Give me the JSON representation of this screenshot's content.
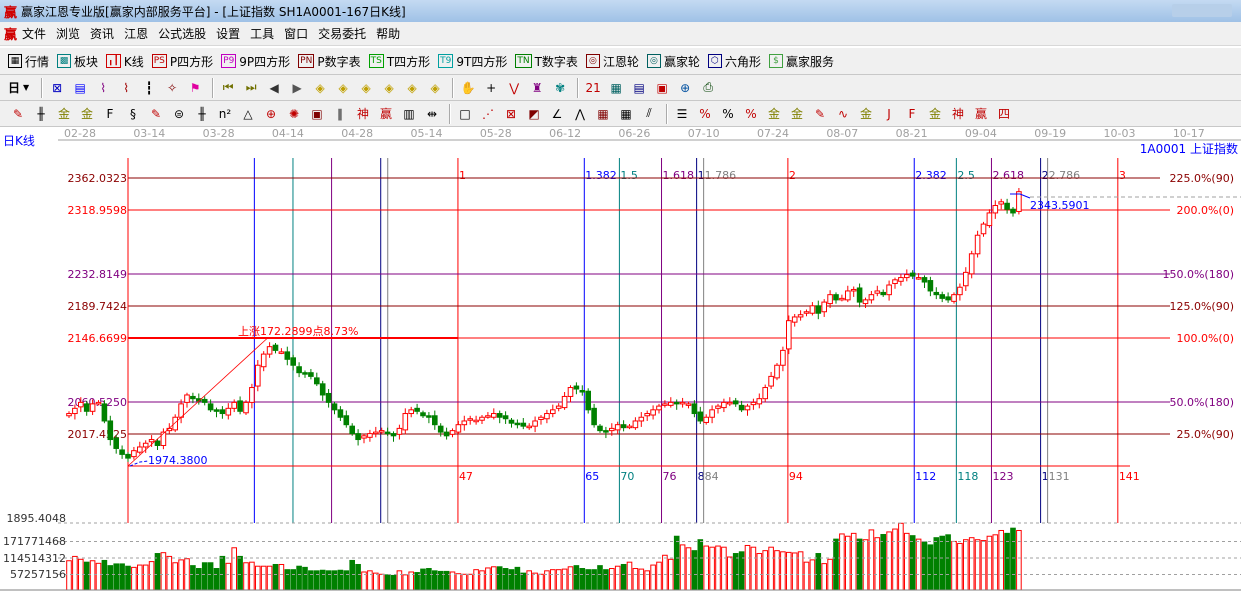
{
  "window": {
    "title": "赢家江恩专业版[赢家内部服务平台] - [上证指数  SH1A0001-167日K线]",
    "logo": "赢"
  },
  "menu": [
    "文件",
    "浏览",
    "资讯",
    "江恩",
    "公式选股",
    "设置",
    "工具",
    "窗口",
    "交易委托",
    "帮助"
  ],
  "toolbar1": [
    {
      "icon": "quote-table-icon",
      "glyph": "▦",
      "label": "行情",
      "color": "#000"
    },
    {
      "icon": "sector-blocks-icon",
      "glyph": "▩",
      "label": "板块",
      "color": "#008080"
    },
    {
      "icon": "kline-icon",
      "glyph": "╻┃",
      "label": "K线",
      "color": "#d00000"
    },
    {
      "icon": "ps-icon",
      "glyph": "PS",
      "label": "P四方形",
      "color": "#c00000"
    },
    {
      "icon": "p9-icon",
      "glyph": "P9",
      "label": "9P四方形",
      "color": "#c000c0"
    },
    {
      "icon": "pn-icon",
      "glyph": "PN",
      "label": "P数字表",
      "color": "#800000"
    },
    {
      "icon": "ts-icon",
      "glyph": "TS",
      "label": "T四方形",
      "color": "#00a000"
    },
    {
      "icon": "t9-icon",
      "glyph": "T9",
      "label": "9T四方形",
      "color": "#00a0a0"
    },
    {
      "icon": "tn-icon",
      "glyph": "TN",
      "label": "T数字表",
      "color": "#008000"
    },
    {
      "icon": "gann-wheel-icon",
      "glyph": "◎",
      "label": "江恩轮",
      "color": "#800000"
    },
    {
      "icon": "big-wheel-icon",
      "glyph": "◎",
      "label": "赢家轮",
      "color": "#006060"
    },
    {
      "icon": "hexagon-icon",
      "glyph": "⬡",
      "label": "六角形",
      "color": "#000080"
    },
    {
      "icon": "dollar-icon",
      "glyph": "$",
      "label": "赢家服务",
      "color": "#40a040"
    }
  ],
  "toolbar2": {
    "period": "日",
    "icons": [
      {
        "n": "zoom-chart-icon",
        "g": "⊠",
        "c": "#0000c0"
      },
      {
        "n": "notes-icon",
        "g": "▤",
        "c": "#0000ff"
      },
      {
        "n": "indicator3-icon",
        "g": "⌇",
        "c": "#800080"
      },
      {
        "n": "indicator9-icon",
        "g": "⌇",
        "c": "#a00000"
      },
      {
        "n": "candle-type-icon",
        "g": "┇",
        "c": "#000"
      },
      {
        "n": "map-icon",
        "g": "✧",
        "c": "#800000"
      },
      {
        "n": "flag-icon",
        "g": "⚑",
        "c": "#e000a0"
      },
      {
        "n": "first-icon",
        "g": "⏮",
        "c": "#707000"
      },
      {
        "n": "last-icon",
        "g": "⏭",
        "c": "#707000"
      },
      {
        "n": "prev-icon",
        "g": "◀",
        "c": "#333"
      },
      {
        "n": "next-icon",
        "g": "▶",
        "c": "#555"
      },
      {
        "n": "move-left-icon",
        "g": "◈",
        "c": "#c0a000"
      },
      {
        "n": "move-right-icon",
        "g": "◈",
        "c": "#c0a000"
      },
      {
        "n": "expand-icon",
        "g": "◈",
        "c": "#c0a000"
      },
      {
        "n": "shrink-icon",
        "g": "◈",
        "c": "#c0a000"
      },
      {
        "n": "zoom-in-icon",
        "g": "◈",
        "c": "#c0a000"
      },
      {
        "n": "zoom-out-icon",
        "g": "◈",
        "c": "#c0a000"
      },
      {
        "n": "hand-icon",
        "g": "✋",
        "c": "#000"
      },
      {
        "n": "crosshair-icon",
        "g": "+",
        "c": "#000"
      },
      {
        "n": "line-icon",
        "g": "⋁",
        "c": "#c00000"
      },
      {
        "n": "shirt-icon",
        "g": "♜",
        "c": "#800080"
      },
      {
        "n": "pattern-icon",
        "g": "✾",
        "c": "#008080"
      },
      {
        "n": "calendar-icon",
        "g": "21",
        "c": "#c00000"
      },
      {
        "n": "calculator-icon",
        "g": "▦",
        "c": "#006060"
      },
      {
        "n": "report-icon",
        "g": "▤",
        "c": "#000080"
      },
      {
        "n": "save-icon",
        "g": "▣",
        "c": "#c00000"
      },
      {
        "n": "network-icon",
        "g": "⊕",
        "c": "#0050a0"
      },
      {
        "n": "print-icon",
        "g": "⎙",
        "c": "#004000"
      }
    ]
  },
  "toolbar3": [
    {
      "n": "pen-icon",
      "g": "✎",
      "c": "#c00000"
    },
    {
      "n": "parallel-icon",
      "g": "╫",
      "c": "#000"
    },
    {
      "n": "gold-line-icon",
      "g": "金",
      "c": "#808000"
    },
    {
      "n": "gold-line2-icon",
      "g": "金",
      "c": "#808000"
    },
    {
      "n": "fib-icon",
      "g": "F",
      "c": "#000"
    },
    {
      "n": "spiral-icon",
      "g": "§",
      "c": "#000"
    },
    {
      "n": "ruler-pen-icon",
      "g": "✎",
      "c": "#c00000"
    },
    {
      "n": "circle-grid-icon",
      "g": "⊜",
      "c": "#000"
    },
    {
      "n": "hash-icon",
      "g": "╫",
      "c": "#000"
    },
    {
      "n": "n2-icon",
      "g": "n²",
      "c": "#000"
    },
    {
      "n": "triangle-icon",
      "g": "△",
      "c": "#000"
    },
    {
      "n": "target-icon",
      "g": "⊕",
      "c": "#c00000"
    },
    {
      "n": "radial-icon",
      "g": "✺",
      "c": "#c00000"
    },
    {
      "n": "square-target-icon",
      "g": "▣",
      "c": "#800000"
    },
    {
      "n": "slash-icon",
      "g": "∥",
      "c": "#000"
    },
    {
      "n": "god-icon",
      "g": "神",
      "c": "#c00000"
    },
    {
      "n": "win-icon",
      "g": "赢",
      "c": "#c00000"
    },
    {
      "n": "scale-icon",
      "g": "▥",
      "c": "#000"
    },
    {
      "n": "width-icon",
      "g": "⇹",
      "c": "#000"
    },
    {
      "n": "box-icon",
      "g": "□",
      "c": "#000"
    },
    {
      "n": "fan-icon",
      "g": "⋰",
      "c": "#c00000"
    },
    {
      "n": "square-diag-icon",
      "g": "⊠",
      "c": "#c00000"
    },
    {
      "n": "square-fan-icon",
      "g": "◩",
      "c": "#800000"
    },
    {
      "n": "angle-icon",
      "g": "∠",
      "c": "#000"
    },
    {
      "n": "zigzag-icon",
      "g": "⋀",
      "c": "#000"
    },
    {
      "n": "grid-icon",
      "g": "▦",
      "c": "#800000"
    },
    {
      "n": "grid2-icon",
      "g": "▦",
      "c": "#000"
    },
    {
      "n": "triple-slash-icon",
      "g": "⫽",
      "c": "#000"
    },
    {
      "n": "levels-icon",
      "g": "☰",
      "c": "#000"
    },
    {
      "n": "pct-line-icon",
      "g": "%",
      "c": "#c00000"
    },
    {
      "n": "percent-icon",
      "g": "%",
      "c": "#000"
    },
    {
      "n": "pct-levels-icon",
      "g": "%",
      "c": "#c00000"
    },
    {
      "n": "gold-circle-icon",
      "g": "金",
      "c": "#808000"
    },
    {
      "n": "gold-levels-icon",
      "g": "金",
      "c": "#808000"
    },
    {
      "n": "marker-icon",
      "g": "✎",
      "c": "#c00000"
    },
    {
      "n": "wave-icon",
      "g": "∿",
      "c": "#c00000"
    },
    {
      "n": "gold-bar-icon",
      "g": "金",
      "c": "#808000"
    },
    {
      "n": "j-angle-icon",
      "g": "J",
      "c": "#c00000"
    },
    {
      "n": "f-angle-icon",
      "g": "F",
      "c": "#c00000"
    },
    {
      "n": "gold-angle-icon",
      "g": "金",
      "c": "#808000"
    },
    {
      "n": "god-angle-icon",
      "g": "神",
      "c": "#c00000"
    },
    {
      "n": "win-angle-icon",
      "g": "赢",
      "c": "#c00000"
    },
    {
      "n": "four-angle-icon",
      "g": "四",
      "c": "#c00000"
    }
  ],
  "chart": {
    "period_label": "日K线",
    "symbol_label": "1A0001  上证指数",
    "dates": [
      "02-28",
      "03-14",
      "03-28",
      "04-14",
      "04-28",
      "05-14",
      "05-28",
      "06-12",
      "06-26",
      "07-10",
      "07-24",
      "08-07",
      "08-21",
      "09-04",
      "09-19",
      "10-03",
      "10-17"
    ],
    "levels": [
      {
        "price": 2362.0323,
        "price_label": "2362.0323",
        "pct": "225.0%(90)",
        "color": "#8b0000"
      },
      {
        "price": 2318.9598,
        "price_label": "2318.9598",
        "pct": "200.0%(0)",
        "color": "#ff0000"
      },
      {
        "price": 2232.8149,
        "price_label": "2232.8149",
        "pct": "150.0%(180)",
        "color": "#800080"
      },
      {
        "price": 2189.7424,
        "price_label": "2189.7424",
        "pct": "125.0%(90)",
        "color": "#8b0000"
      },
      {
        "price": 2146.6699,
        "price_label": "2146.6699",
        "pct": "100.0%(0)",
        "color": "#ff0000"
      },
      {
        "price": 2060.525,
        "price_label": "2060.5250",
        "pct": "50.0%(180)",
        "color": "#800080"
      },
      {
        "price": 2017.4525,
        "price_label": "2017.4525",
        "pct": "25.0%(90)",
        "color": "#8b0000"
      }
    ],
    "low": {
      "price": 1974.38,
      "label": "1974.3800",
      "bar": 10
    },
    "high": {
      "price": 2146.6699,
      "bar": 34
    },
    "rise_label": "上涨172.2899点8.73%",
    "last_price_label": "2343.5901",
    "time_lines": [
      {
        "count": 0,
        "color": "#ff0000"
      },
      {
        "count": 18,
        "color": "#0000ff"
      },
      {
        "count": 23.5,
        "color": "#008080"
      },
      {
        "count": 29,
        "color": "#800080"
      },
      {
        "count": 36,
        "color": "#000080"
      },
      {
        "count": 37,
        "color": "#808080"
      },
      {
        "count": 47,
        "ratio": "1",
        "color": "#ff0000"
      },
      {
        "count": 65,
        "ratio": "1.382",
        "color": "#0000ff"
      },
      {
        "count": 70,
        "ratio": "1.5",
        "color": "#008080"
      },
      {
        "count": 76,
        "ratio": "1.618",
        "color": "#800080"
      },
      {
        "count": 81,
        "ratio": "1",
        "count_label": "8",
        "color": "#000080"
      },
      {
        "count": 82,
        "ratio": "1.786",
        "count_label": "84",
        "color": "#808080"
      },
      {
        "count": 94,
        "ratio": "2",
        "color": "#ff0000"
      },
      {
        "count": 112,
        "ratio": "2.382",
        "color": "#0000ff"
      },
      {
        "count": 118,
        "ratio": "2.5",
        "color": "#008080"
      },
      {
        "count": 123,
        "ratio": "2.618",
        "color": "#800080"
      },
      {
        "count": 130,
        "ratio": "2",
        "count_label": "1",
        "color": "#000080"
      },
      {
        "count": 131,
        "ratio": "2.786",
        "color": "#808080"
      },
      {
        "count": 141,
        "ratio": "3",
        "color": "#ff0000"
      }
    ],
    "volume_axis": [
      "1895.4048",
      "171771468",
      "114514312",
      "57257156"
    ],
    "volume_grid": [
      171771468,
      114514312,
      57257156
    ],
    "up_color": "#ff0000",
    "down_color": "#008000",
    "chart_data": {
      "type": "candlestick",
      "close": [
        2045,
        2052,
        2060,
        2048,
        2058,
        2060,
        2035,
        2010,
        1998,
        1990,
        1985,
        1995,
        2000,
        2005,
        2010,
        2002,
        2020,
        2025,
        2040,
        2058,
        2070,
        2065,
        2062,
        2060,
        2050,
        2048,
        2045,
        2052,
        2060,
        2048,
        2060,
        2080,
        2110,
        2125,
        2135,
        2130,
        2128,
        2118,
        2110,
        2100,
        2098,
        2095,
        2085,
        2070,
        2060,
        2050,
        2040,
        2030,
        2018,
        2010,
        2015,
        2018,
        2020,
        2022,
        2018,
        2015,
        2025,
        2045,
        2050,
        2048,
        2042,
        2040,
        2030,
        2020,
        2015,
        2022,
        2030,
        2035,
        2038,
        2036,
        2040,
        2042,
        2045,
        2040,
        2038,
        2032,
        2030,
        2028,
        2028,
        2035,
        2040,
        2045,
        2050,
        2055,
        2068,
        2080,
        2078,
        2075,
        2050,
        2030,
        2022,
        2020,
        2025,
        2030,
        2026,
        2028,
        2035,
        2040,
        2045,
        2050,
        2055,
        2058,
        2060,
        2058,
        2060,
        2058,
        2045,
        2035,
        2040,
        2050,
        2055,
        2060,
        2060,
        2058,
        2050,
        2055,
        2060,
        2065,
        2080,
        2095,
        2110,
        2130,
        2170,
        2175,
        2178,
        2182,
        2190,
        2180,
        2195,
        2205,
        2198,
        2200,
        2210,
        2212,
        2195,
        2198,
        2205,
        2210,
        2205,
        2218,
        2225,
        2228,
        2232,
        2230,
        2228,
        2222,
        2210,
        2205,
        2200,
        2198,
        2205,
        2215,
        2235,
        2260,
        2285,
        2300,
        2315,
        2325,
        2330,
        2320,
        2315,
        2343.59
      ],
      "volume": [
        105000000.0,
        120000000.0,
        110000000.0,
        100000000.0,
        105000000.0,
        96000000.0,
        106000000.0,
        88000000.0,
        94000000.0,
        94000000.0,
        86000000.0,
        82000000.0,
        90000000.0,
        90000000.0,
        102000000.0,
        130000000.0,
        133000000.0,
        120000000.0,
        98000000.0,
        108000000.0,
        112000000.0,
        88000000.0,
        78000000.0,
        98000000.0,
        98000000.0,
        78000000.0,
        120000000.0,
        96000000.0,
        150000000.0,
        120000000.0,
        98000000.0,
        100000000.0,
        86000000.0,
        86000000.0,
        86000000.0,
        92000000.0,
        92000000.0,
        74000000.0,
        74000000.0,
        86000000.0,
        82000000.0,
        70000000.0,
        70000000.0,
        72000000.0,
        70000000.0,
        70000000.0,
        72000000.0,
        70000000.0,
        106000000.0,
        92000000.0,
        66000000.0,
        70000000.0,
        62000000.0,
        58000000.0,
        56000000.0,
        54000000.0,
        70000000.0,
        56000000.0,
        66000000.0,
        64000000.0,
        76000000.0,
        78000000.0,
        70000000.0,
        68000000.0,
        68000000.0,
        66000000.0,
        60000000.0,
        58000000.0,
        58000000.0,
        74000000.0,
        70000000.0,
        80000000.0,
        84000000.0,
        84000000.0,
        78000000.0,
        74000000.0,
        82000000.0,
        62000000.0,
        70000000.0,
        62000000.0,
        58000000.0,
        70000000.0,
        74000000.0,
        74000000.0,
        76000000.0,
        84000000.0,
        88000000.0,
        78000000.0,
        74000000.0,
        74000000.0,
        88000000.0,
        74000000.0,
        78000000.0,
        86000000.0,
        92000000.0,
        100000000.0,
        78000000.0,
        76000000.0,
        70000000.0,
        90000000.0,
        100000000.0,
        124000000.0,
        110000000.0,
        190000000.0,
        160000000.0,
        150000000.0,
        140000000.0,
        178000000.0,
        156000000.0,
        152000000.0,
        156000000.0,
        152000000.0,
        118000000.0,
        130000000.0,
        136000000.0,
        158000000.0,
        152000000.0,
        130000000.0,
        140000000.0,
        152000000.0,
        140000000.0,
        136000000.0,
        134000000.0,
        132000000.0,
        136000000.0,
        100000000.0,
        108000000.0,
        130000000.0,
        95000000.0,
        110000000.0,
        180000000.0,
        198000000.0,
        190000000.0,
        200000000.0,
        180000000.0,
        178000000.0,
        212000000.0,
        185000000.0,
        196000000.0,
        205000000.0,
        215000000.0,
        235000000.0,
        200000000.0,
        192000000.0,
        180000000.0,
        170000000.0,
        160000000.0,
        185000000.0,
        190000000.0,
        195000000.0,
        172000000.0,
        165000000.0,
        178000000.0,
        185000000.0,
        178000000.0,
        175000000.0,
        190000000.0,
        195000000.0,
        210000000.0,
        200000000.0,
        218000000.0,
        210000000.0,
        205000000.0,
        220000000.0
      ]
    }
  }
}
